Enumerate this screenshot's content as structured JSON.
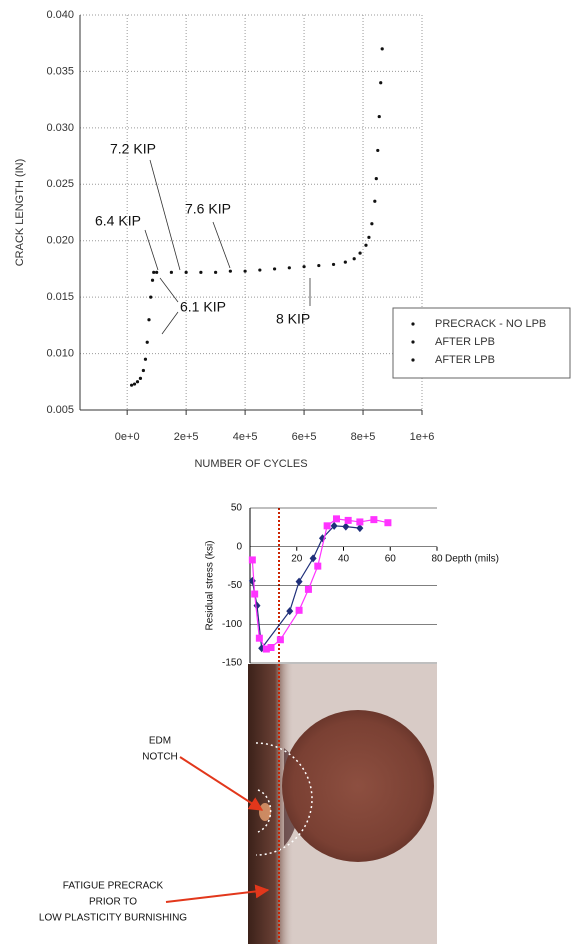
{
  "chart_data": [
    {
      "type": "scatter",
      "xlabel": "NUMBER OF CYCLES",
      "ylabel": "CRACK LENGTH (IN)",
      "xlim": [
        -160000,
        1000000
      ],
      "ylim": [
        0.005,
        0.04
      ],
      "xticks": [
        {
          "value": 0,
          "label": "0e+0"
        },
        {
          "value": 200000,
          "label": "2e+5"
        },
        {
          "value": 400000,
          "label": "4e+5"
        },
        {
          "value": 600000,
          "label": "6e+5"
        },
        {
          "value": 800000,
          "label": "8e+5"
        },
        {
          "value": 1000000,
          "label": "1e+6"
        }
      ],
      "yticks": [
        0.005,
        {
          "value": 0.01,
          "label": "0.010"
        },
        0.015,
        {
          "value": 0.02,
          "label": "0.020"
        },
        0.025,
        {
          "value": 0.03,
          "label": "0.030"
        },
        0.035,
        {
          "value": 0.04,
          "label": "0.040"
        }
      ],
      "grid": true,
      "legend": "right",
      "series": [
        {
          "name": "PRECRACK - NO LPB",
          "color": "#111111",
          "x": [
            15000,
            25000,
            35000,
            45000,
            55000,
            62000,
            68000,
            74000,
            80000,
            86000,
            90000
          ],
          "values": [
            0.0072,
            0.0073,
            0.0075,
            0.0078,
            0.0085,
            0.0095,
            0.011,
            0.013,
            0.015,
            0.0165,
            0.0172
          ]
        },
        {
          "name": "AFTER LPB",
          "color": "#111111",
          "x": [
            100000,
            150000,
            200000,
            250000,
            300000,
            350000,
            400000,
            450000,
            500000,
            550000,
            600000
          ],
          "values": [
            0.0172,
            0.0172,
            0.0172,
            0.0172,
            0.0172,
            0.0173,
            0.0173,
            0.0174,
            0.0175,
            0.0176,
            0.0177
          ]
        },
        {
          "name": "AFTER LPB",
          "color": "#111111",
          "x": [
            650000,
            700000,
            740000,
            770000,
            790000,
            810000,
            820000,
            830000,
            840000,
            845000,
            850000,
            855000,
            860000,
            865000
          ],
          "values": [
            0.0178,
            0.0179,
            0.0181,
            0.0184,
            0.0189,
            0.0196,
            0.0203,
            0.0215,
            0.0235,
            0.0255,
            0.028,
            0.031,
            0.034,
            0.037
          ]
        }
      ],
      "annotations": [
        "7.2 KIP",
        "6.4 KIP",
        "7.6 KIP",
        "6.1 KIP",
        "8 KIP"
      ]
    },
    {
      "type": "line",
      "xlabel": "Depth (mils)",
      "ylabel": "Residual stress (ksi)",
      "xlim": [
        0,
        80
      ],
      "ylim": [
        -150,
        50
      ],
      "xticks": [
        20,
        40,
        60,
        80
      ],
      "yticks": [
        -150,
        -100,
        -50,
        0,
        50
      ],
      "grid": true,
      "series": [
        {
          "color": "#1f2f7a",
          "marker": "diamond",
          "x": [
            1,
            3,
            5,
            17,
            21,
            27,
            31,
            36,
            41,
            47
          ],
          "values": [
            -44,
            -76,
            -131,
            -83,
            -45,
            -15,
            11,
            27,
            26,
            24
          ]
        },
        {
          "color": "#ff33ff",
          "marker": "square",
          "x": [
            1,
            2,
            4,
            7,
            9,
            13,
            21,
            25,
            29,
            33,
            37,
            42,
            47,
            53,
            59
          ],
          "values": [
            -17,
            -61,
            -118,
            -132,
            -130,
            -120,
            -82,
            -55,
            -25,
            27,
            36,
            34,
            32,
            35,
            31
          ]
        }
      ]
    }
  ],
  "image_labels": {
    "notch": [
      "EDM",
      "NOTCH"
    ],
    "precrack": [
      "FATIGUE PRECRACK",
      "PRIOR TO",
      "LOW PLASTICITY BURNISHING"
    ]
  }
}
